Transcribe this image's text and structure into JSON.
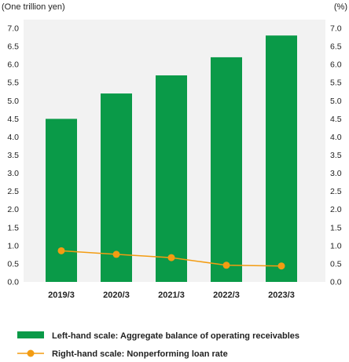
{
  "chart_data": {
    "type": "bar",
    "categories": [
      "2019/3",
      "2020/3",
      "2021/3",
      "2022/3",
      "2023/3"
    ],
    "series": [
      {
        "name": "Left-hand scale: Aggregate balance of operating receivables",
        "type": "bar",
        "axis": "left",
        "color": "#0a9a48",
        "values": [
          4.5,
          5.2,
          5.7,
          6.2,
          6.8
        ]
      },
      {
        "name": "Right-hand scale: Nonperforming loan rate",
        "type": "line",
        "axis": "right",
        "color": "#f39c12",
        "values": [
          0.86,
          0.76,
          0.67,
          0.46,
          0.44
        ]
      }
    ],
    "left_axis": {
      "unit_label": "(One trillion yen)",
      "range": [
        0,
        7
      ],
      "ticks": [
        "0.0",
        "0.5",
        "1.0",
        "1.5",
        "2.0",
        "2.5",
        "3.0",
        "3.5",
        "4.0",
        "4.5",
        "5.0",
        "5.5",
        "6.0",
        "6.5",
        "7.0"
      ]
    },
    "right_axis": {
      "unit_label": "(%)",
      "range": [
        0,
        7
      ],
      "ticks": [
        "0.0",
        "0.5",
        "1.0",
        "1.5",
        "2.0",
        "2.5",
        "3.0",
        "3.5",
        "4.0",
        "4.5",
        "5.0",
        "5.5",
        "6.0",
        "6.5",
        "7.0"
      ]
    },
    "grid": false,
    "plot_background": "#f2f2f2",
    "legend_position": "bottom-left"
  }
}
